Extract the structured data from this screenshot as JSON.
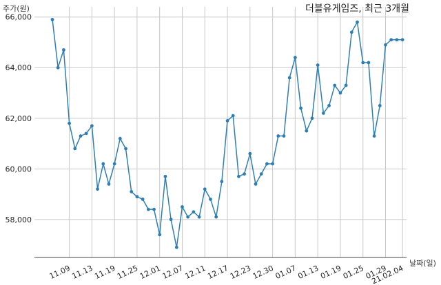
{
  "chart_data": {
    "type": "line",
    "title": "더블유게임즈, 최근 3개월",
    "ylabel": "주가(원)",
    "xlabel": "날짜(일)",
    "ylim": [
      56500,
      66400
    ],
    "yticks": [
      58000,
      60000,
      62000,
      64000,
      66000
    ],
    "ytick_labels": [
      "58,000",
      "60,000",
      "62,000",
      "64,000",
      "66,000"
    ],
    "xtick_labels": [
      "11.09",
      "11.13",
      "11.19",
      "11.25",
      "12.01",
      "12.07",
      "12.11",
      "12.17",
      "12.23",
      "12.30",
      "01.07",
      "01.13",
      "01.19",
      "01.25",
      "01.29",
      "21.02.04"
    ],
    "xtick_index": [
      3,
      7,
      11,
      15,
      19,
      23,
      27,
      31,
      35,
      39,
      43,
      47,
      51,
      55,
      59,
      62
    ],
    "grid": true,
    "line_color": "#2e7eb3",
    "series": [
      {
        "values": [
          65900,
          64000,
          64700,
          61800,
          60800,
          61300,
          61400,
          61700,
          59200,
          60200,
          59400,
          60200,
          61200,
          60800,
          59100,
          58900,
          58800,
          58400,
          58400,
          57400,
          59700,
          58000,
          56900,
          58500,
          58100,
          58300,
          58100,
          59200,
          58800,
          58100,
          59500,
          61900,
          62100,
          59700,
          59800,
          60600,
          59400,
          59800,
          60200,
          60200,
          61300,
          61300,
          63600,
          64400,
          62400,
          61500,
          62000,
          64100,
          62200,
          62500,
          63300,
          63000,
          63300,
          65400,
          65800,
          64200,
          64200,
          61300,
          62500,
          64900,
          65100,
          65100,
          65100
        ]
      }
    ]
  }
}
